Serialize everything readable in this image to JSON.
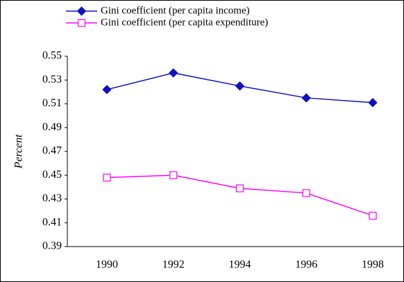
{
  "chart_data": {
    "type": "line",
    "y_label": "Percent",
    "categories": [
      "1990",
      "1992",
      "1994",
      "1996",
      "1998"
    ],
    "series": [
      {
        "name": "Gini coefficient (per capita income)",
        "color": "#1010c0",
        "marker": "diamond",
        "values": [
          0.522,
          0.536,
          0.525,
          0.515,
          0.511
        ]
      },
      {
        "name": "Gini coefficient (per capita expenditure)",
        "color": "#ff00ff",
        "marker": "square",
        "values": [
          0.448,
          0.45,
          0.439,
          0.435,
          0.416
        ]
      }
    ],
    "ylim": [
      0.39,
      0.55
    ],
    "yticks": [
      0.39,
      0.41,
      0.43,
      0.45,
      0.47,
      0.49,
      0.51,
      0.53,
      0.55
    ],
    "grid": false
  }
}
